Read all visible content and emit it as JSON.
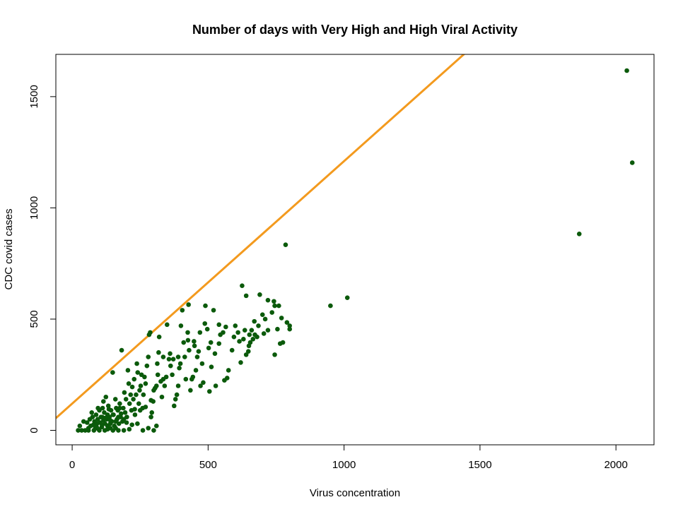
{
  "chart_data": {
    "type": "scatter",
    "title": "Number of days with Very High and High Viral Activity",
    "xlabel": "Virus concentration",
    "ylabel": "CDC covid cases",
    "xlim": [
      -60,
      2140
    ],
    "ylim": [
      -65,
      1690
    ],
    "xticks": [
      0,
      500,
      1000,
      1500,
      2000
    ],
    "yticks": [
      0,
      500,
      1000,
      1500
    ],
    "grid": false,
    "legend": "none",
    "colors": {
      "points": "#0b5a0b",
      "fit_line": "#f39a1e",
      "axis": "#000000"
    },
    "fit_line": {
      "intercept": 120,
      "slope": 1.09
    },
    "points": [
      [
        2040,
        1617
      ],
      [
        2060,
        1203
      ],
      [
        1865,
        883
      ],
      [
        785,
        834
      ],
      [
        1012,
        596
      ],
      [
        950,
        560
      ],
      [
        800,
        470
      ],
      [
        790,
        485
      ],
      [
        800,
        455
      ],
      [
        775,
        395
      ],
      [
        765,
        390
      ],
      [
        745,
        340
      ],
      [
        755,
        455
      ],
      [
        742,
        580
      ],
      [
        745,
        560
      ],
      [
        720,
        585
      ],
      [
        710,
        500
      ],
      [
        700,
        520
      ],
      [
        690,
        610
      ],
      [
        705,
        435
      ],
      [
        685,
        470
      ],
      [
        672,
        430
      ],
      [
        665,
        410
      ],
      [
        660,
        450
      ],
      [
        655,
        395
      ],
      [
        652,
        430
      ],
      [
        648,
        355
      ],
      [
        640,
        340
      ],
      [
        635,
        450
      ],
      [
        630,
        410
      ],
      [
        625,
        650
      ],
      [
        640,
        605
      ],
      [
        620,
        305
      ],
      [
        615,
        400
      ],
      [
        600,
        470
      ],
      [
        588,
        360
      ],
      [
        575,
        270
      ],
      [
        570,
        235
      ],
      [
        560,
        225
      ],
      [
        555,
        440
      ],
      [
        545,
        430
      ],
      [
        540,
        390
      ],
      [
        528,
        200
      ],
      [
        525,
        345
      ],
      [
        520,
        540
      ],
      [
        512,
        285
      ],
      [
        505,
        175
      ],
      [
        502,
        370
      ],
      [
        497,
        455
      ],
      [
        490,
        560
      ],
      [
        488,
        480
      ],
      [
        482,
        215
      ],
      [
        478,
        300
      ],
      [
        472,
        200
      ],
      [
        465,
        355
      ],
      [
        460,
        330
      ],
      [
        455,
        270
      ],
      [
        448,
        400
      ],
      [
        444,
        240
      ],
      [
        440,
        230
      ],
      [
        435,
        180
      ],
      [
        430,
        360
      ],
      [
        428,
        565
      ],
      [
        426,
        405
      ],
      [
        425,
        440
      ],
      [
        418,
        230
      ],
      [
        414,
        330
      ],
      [
        405,
        540
      ],
      [
        400,
        470
      ],
      [
        398,
        300
      ],
      [
        394,
        280
      ],
      [
        390,
        200
      ],
      [
        385,
        160
      ],
      [
        380,
        140
      ],
      [
        375,
        110
      ],
      [
        372,
        320
      ],
      [
        368,
        250
      ],
      [
        362,
        290
      ],
      [
        356,
        320
      ],
      [
        349,
        475
      ],
      [
        346,
        240
      ],
      [
        340,
        200
      ],
      [
        335,
        230
      ],
      [
        330,
        150
      ],
      [
        326,
        220
      ],
      [
        320,
        420
      ],
      [
        318,
        350
      ],
      [
        313,
        300
      ],
      [
        310,
        200
      ],
      [
        305,
        190
      ],
      [
        300,
        180
      ],
      [
        298,
        130
      ],
      [
        293,
        80
      ],
      [
        290,
        60
      ],
      [
        287,
        440
      ],
      [
        283,
        430
      ],
      [
        280,
        330
      ],
      [
        275,
        290
      ],
      [
        270,
        210
      ],
      [
        266,
        240
      ],
      [
        262,
        160
      ],
      [
        259,
        100
      ],
      [
        255,
        250
      ],
      [
        252,
        200
      ],
      [
        248,
        180
      ],
      [
        245,
        120
      ],
      [
        241,
        260
      ],
      [
        238,
        300
      ],
      [
        235,
        160
      ],
      [
        231,
        70
      ],
      [
        228,
        230
      ],
      [
        225,
        140
      ],
      [
        221,
        195
      ],
      [
        218,
        90
      ],
      [
        215,
        160
      ],
      [
        211,
        120
      ],
      [
        208,
        210
      ],
      [
        205,
        270
      ],
      [
        201,
        60
      ],
      [
        198,
        140
      ],
      [
        195,
        80
      ],
      [
        192,
        170
      ],
      [
        188,
        100
      ],
      [
        185,
        40
      ],
      [
        182,
        360
      ],
      [
        178,
        60
      ],
      [
        175,
        120
      ],
      [
        172,
        30
      ],
      [
        168,
        90
      ],
      [
        165,
        50
      ],
      [
        162,
        100
      ],
      [
        159,
        140
      ],
      [
        155,
        20
      ],
      [
        152,
        70
      ],
      [
        149,
        260
      ],
      [
        146,
        40
      ],
      [
        143,
        90
      ],
      [
        140,
        10
      ],
      [
        137,
        60
      ],
      [
        133,
        110
      ],
      [
        130,
        20
      ],
      [
        127,
        50
      ],
      [
        124,
        150
      ],
      [
        121,
        30
      ],
      [
        118,
        80
      ],
      [
        115,
        45
      ],
      [
        112,
        100
      ],
      [
        109,
        15
      ],
      [
        106,
        60
      ],
      [
        103,
        35
      ],
      [
        100,
        90
      ],
      [
        97,
        5
      ],
      [
        94,
        50
      ],
      [
        91,
        30
      ],
      [
        88,
        70
      ],
      [
        85,
        10
      ],
      [
        82,
        40
      ],
      [
        78,
        25
      ],
      [
        75,
        60
      ],
      [
        72,
        80
      ],
      [
        68,
        20
      ],
      [
        65,
        50
      ],
      [
        60,
        10
      ],
      [
        55,
        35
      ],
      [
        48,
        0
      ],
      [
        42,
        40
      ],
      [
        35,
        0
      ],
      [
        28,
        20
      ],
      [
        22,
        0
      ],
      [
        300,
        0
      ],
      [
        310,
        20
      ],
      [
        280,
        10
      ],
      [
        260,
        0
      ],
      [
        240,
        30
      ],
      [
        210,
        5
      ],
      [
        190,
        0
      ],
      [
        170,
        0
      ],
      [
        160,
        10
      ],
      [
        150,
        0
      ],
      [
        140,
        30
      ],
      [
        130,
        5
      ],
      [
        120,
        0
      ],
      [
        110,
        25
      ],
      [
        100,
        0
      ],
      [
        90,
        15
      ],
      [
        80,
        0
      ],
      [
        60,
        0
      ],
      [
        150,
        70
      ],
      [
        170,
        60
      ],
      [
        190,
        50
      ],
      [
        130,
        70
      ],
      [
        110,
        60
      ],
      [
        160,
        40
      ],
      [
        140,
        45
      ],
      [
        120,
        55
      ],
      [
        180,
        75
      ],
      [
        200,
        35
      ],
      [
        220,
        25
      ],
      [
        230,
        95
      ],
      [
        175,
        100
      ],
      [
        135,
        95
      ],
      [
        115,
        130
      ],
      [
        95,
        100
      ],
      [
        250,
        90
      ],
      [
        270,
        105
      ],
      [
        290,
        135
      ],
      [
        315,
        250
      ],
      [
        335,
        330
      ],
      [
        360,
        345
      ],
      [
        390,
        330
      ],
      [
        410,
        395
      ],
      [
        450,
        380
      ],
      [
        470,
        440
      ],
      [
        510,
        395
      ],
      [
        540,
        475
      ],
      [
        565,
        465
      ],
      [
        595,
        420
      ],
      [
        610,
        440
      ],
      [
        650,
        380
      ],
      [
        670,
        490
      ],
      [
        680,
        420
      ],
      [
        720,
        450
      ],
      [
        735,
        530
      ],
      [
        760,
        560
      ],
      [
        770,
        505
      ]
    ]
  }
}
